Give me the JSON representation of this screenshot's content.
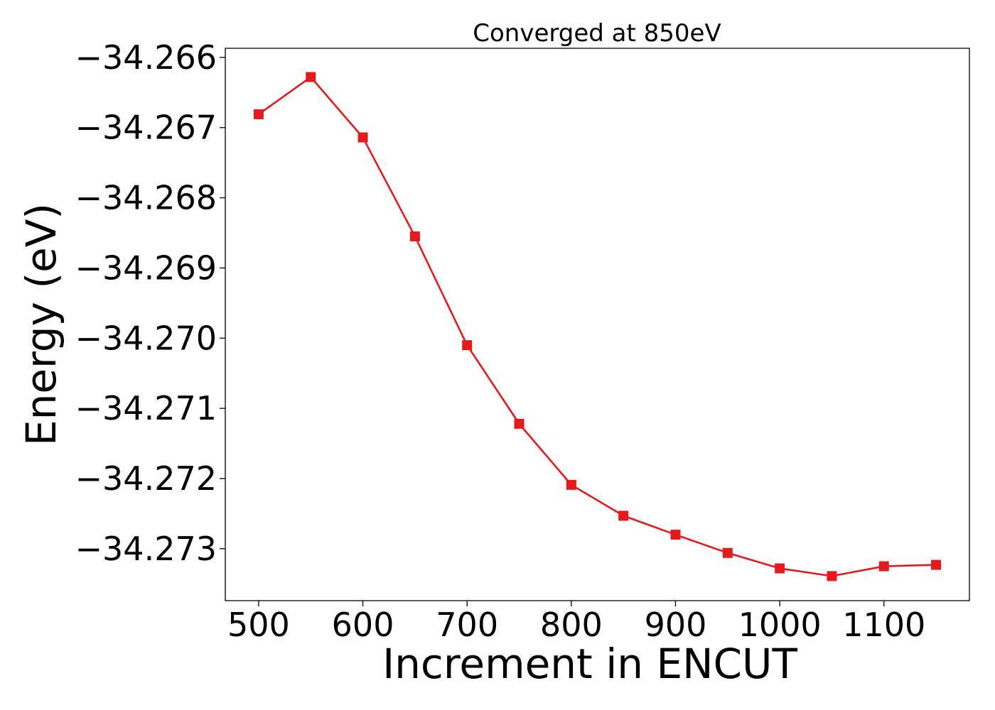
{
  "chart_data": {
    "type": "line",
    "title": "Converged at 850eV",
    "xlabel": "Increment in ENCUT",
    "ylabel": "Energy (eV)",
    "x": [
      500,
      550,
      600,
      650,
      700,
      750,
      800,
      850,
      900,
      950,
      1000,
      1050,
      1100,
      1150
    ],
    "series": [
      {
        "values": [
          -34.26681,
          -34.26628,
          -34.26714,
          -34.26855,
          -34.2701,
          -34.27122,
          -34.27209,
          -34.27253,
          -34.2728,
          -34.27306,
          -34.27328,
          -34.27339,
          -34.27325,
          -34.27323
        ],
        "color": "#e41a1c",
        "marker": "square"
      }
    ],
    "xlim": [
      468,
      1182
    ],
    "ylim": [
      -34.27374,
      -34.26587
    ],
    "xticks": [
      500,
      600,
      700,
      800,
      900,
      1000,
      1100
    ],
    "xtick_labels": [
      "500",
      "600",
      "700",
      "800",
      "900",
      "1000",
      "1100"
    ],
    "yticks": [
      -34.266,
      -34.267,
      -34.268,
      -34.269,
      -34.27,
      -34.271,
      -34.272,
      -34.273
    ],
    "ytick_labels": [
      "−34.266",
      "−34.267",
      "−34.268",
      "−34.269",
      "−34.270",
      "−34.271",
      "−34.272",
      "−34.273"
    ],
    "grid": false,
    "legend": "none"
  }
}
